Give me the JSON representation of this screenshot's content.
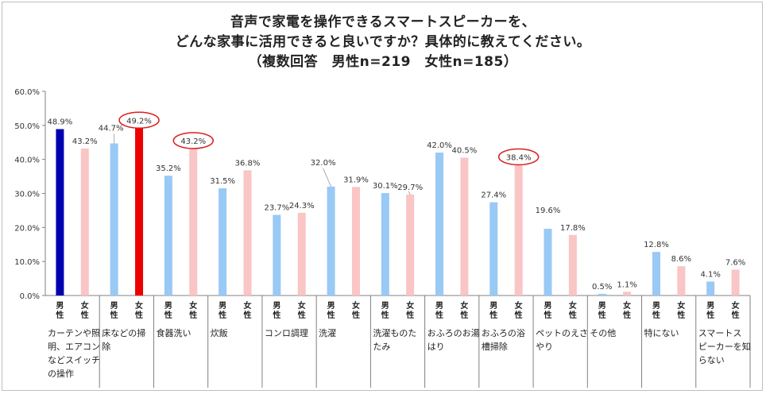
{
  "chart_data": {
    "type": "bar",
    "title_lines": [
      "音声で家電を操作できるスマートスピーカーを、",
      "どんな家事に活用できると良いですか？具体的に教えてください。",
      "（複数回答　男性n=219　女性n=185）"
    ],
    "categories": [
      [
        "カーテンや照",
        "明、エアコン",
        "などスイッチ",
        "の操作"
      ],
      [
        "床などの掃",
        "除"
      ],
      [
        "食器洗い"
      ],
      [
        "炊飯"
      ],
      [
        "コンロ調理"
      ],
      [
        "洗濯"
      ],
      [
        "洗濯ものた",
        "たみ"
      ],
      [
        "おふろのお湯",
        "はり"
      ],
      [
        "おふろの浴",
        "槽掃除"
      ],
      [
        "ペットのえさ",
        "やり"
      ],
      [
        "その他"
      ],
      [
        "特にない"
      ],
      [
        "スマートス",
        "ピーカーを知",
        "らない"
      ]
    ],
    "gender_labels": {
      "male": [
        "男",
        "性"
      ],
      "female": [
        "女",
        "性"
      ]
    },
    "series": [
      {
        "name": "男性",
        "values": [
          48.9,
          44.7,
          35.2,
          31.5,
          23.7,
          32.0,
          30.1,
          42.0,
          27.4,
          19.6,
          0.5,
          12.8,
          4.1
        ],
        "labels": [
          "48.9%",
          "44.7%",
          "35.2%",
          "31.5%",
          "23.7%",
          "32.0%",
          "30.1%",
          "42.0%",
          "27.4%",
          "19.6%",
          "0.5%",
          "12.8%",
          "4.1%"
        ]
      },
      {
        "name": "女性",
        "values": [
          43.2,
          49.2,
          43.2,
          36.8,
          24.3,
          31.9,
          29.7,
          40.5,
          38.4,
          17.8,
          1.1,
          8.6,
          7.6
        ],
        "labels": [
          "43.2%",
          "49.2%",
          "43.2%",
          "36.8%",
          "24.3%",
          "31.9%",
          "29.7%",
          "40.5%",
          "38.4%",
          "17.8%",
          "1.1%",
          "8.6%",
          "7.6%"
        ]
      }
    ],
    "y_ticks": [
      "60.0%",
      "50.0%",
      "40.0%",
      "30.0%",
      "20.0%",
      "10.0%",
      "0.0%"
    ],
    "ylim": [
      0,
      60
    ],
    "circled": [
      {
        "series": 1,
        "index": 1
      },
      {
        "series": 1,
        "index": 2
      },
      {
        "series": 1,
        "index": 8
      }
    ],
    "highlight": [
      {
        "series": 0,
        "index": 0,
        "color": "#0000b0"
      },
      {
        "series": 1,
        "index": 1,
        "color": "#ee0000"
      }
    ],
    "colors": {
      "male": "#99c9f5",
      "female": "#f9c5c5",
      "axis": "#808080",
      "circle": "#d92020"
    }
  }
}
